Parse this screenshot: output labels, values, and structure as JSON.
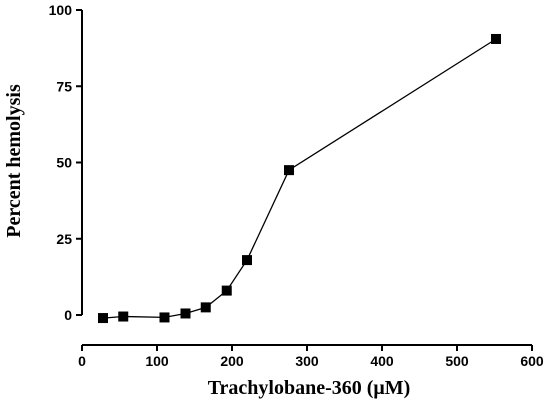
{
  "chart_data": {
    "type": "line",
    "title": "",
    "xlabel": "Trachylobane-360 (μM)",
    "ylabel": "Percent hemolysis",
    "xlim": [
      0,
      600
    ],
    "ylim": [
      0,
      100
    ],
    "x_ticks": [
      0,
      100,
      200,
      300,
      400,
      500,
      600
    ],
    "y_ticks": [
      0,
      25,
      50,
      75,
      100
    ],
    "grid": false,
    "legend": "none",
    "marker": "square",
    "color": "#000000",
    "series": [
      {
        "x": [
          28,
          55,
          110,
          138,
          165,
          193,
          220,
          276,
          552
        ],
        "y": [
          -1,
          -0.5,
          -0.8,
          0.5,
          2.5,
          8,
          18,
          47.5,
          90.5
        ]
      }
    ]
  }
}
